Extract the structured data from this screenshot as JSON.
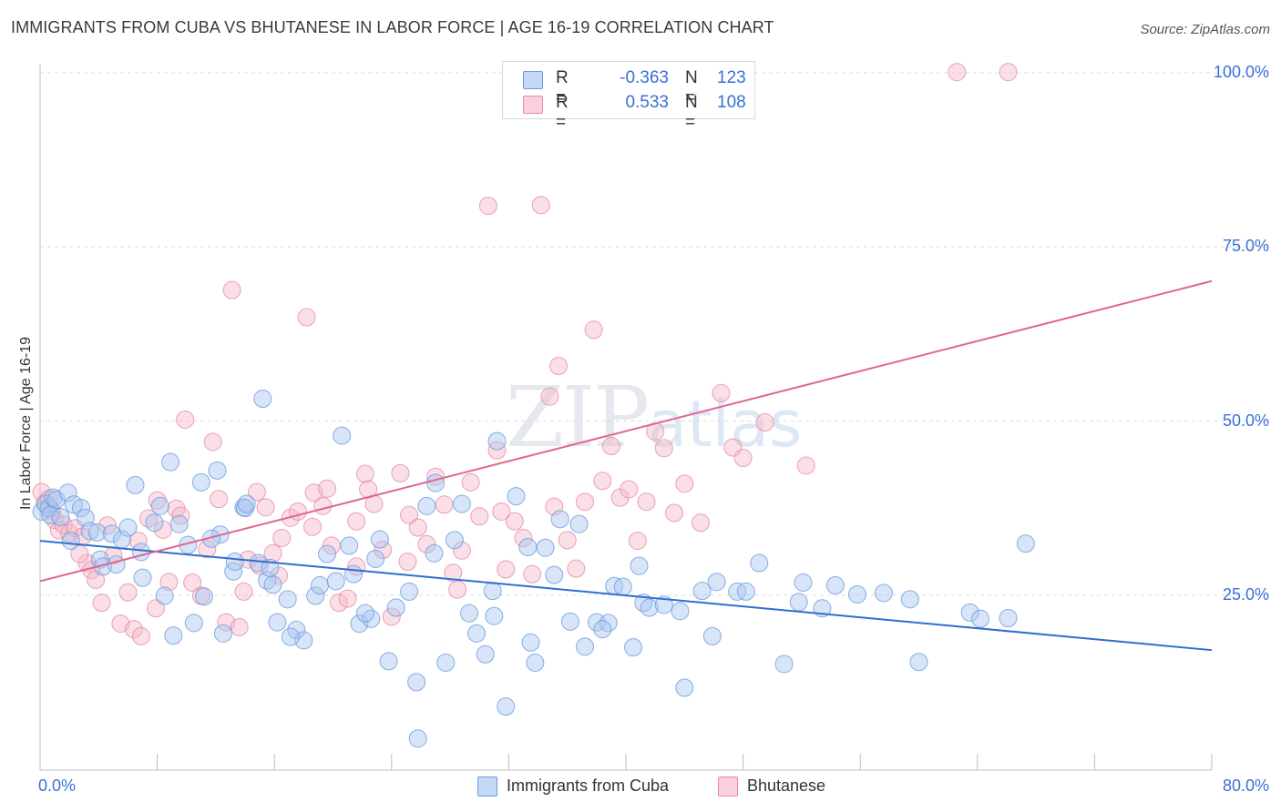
{
  "header": {
    "title": "IMMIGRANTS FROM CUBA VS BHUTANESE IN LABOR FORCE | AGE 16-19 CORRELATION CHART",
    "source": "Source: ZipAtlas.com"
  },
  "watermark": {
    "zip": "ZIP",
    "atlas": "atlas"
  },
  "legend_top": {
    "rows": [
      {
        "r_label": "R =",
        "r_value": "-0.363",
        "n_label": "N =",
        "n_value": "123"
      },
      {
        "r_label": "R =",
        "r_value": "0.533",
        "n_label": "N =",
        "n_value": "108"
      }
    ]
  },
  "legend_bottom": {
    "items": [
      {
        "label": "Immigrants from Cuba"
      },
      {
        "label": "Bhutanese"
      }
    ]
  },
  "colors": {
    "blue_fill": "#a8c6f0",
    "blue_stroke": "#6a9be0",
    "blue_line": "#2f6fd0",
    "pink_fill": "#f5b8c8",
    "pink_stroke": "#e98aa5",
    "pink_line": "#e06690",
    "grid": "#dcdcdc",
    "tick_text": "#3a6fd8"
  },
  "chart_data": {
    "type": "scatter",
    "title": "IMMIGRANTS FROM CUBA VS BHUTANESE IN LABOR FORCE | AGE 16-19 CORRELATION CHART",
    "xlabel": "",
    "ylabel": "In Labor Force | Age 16-19",
    "xlim": [
      0,
      80
    ],
    "ylim": [
      0,
      102
    ],
    "x_tick_labels": [
      {
        "value": 0,
        "label": "0.0%"
      },
      {
        "value": 80,
        "label": "80.0%"
      }
    ],
    "y_tick_labels": [
      {
        "value": 25,
        "label": "25.0%"
      },
      {
        "value": 50,
        "label": "50.0%"
      },
      {
        "value": 75,
        "label": "75.0%"
      },
      {
        "value": 100,
        "label": "100.0%"
      }
    ],
    "grid": true,
    "legend_position": "top-center",
    "series": [
      {
        "name": "Immigrants from Cuba",
        "color": "#a8c6f0",
        "trend": {
          "x": [
            0,
            80
          ],
          "y": [
            32.8,
            17.1
          ]
        },
        "points": [
          [
            0.1,
            37.0
          ],
          [
            0.4,
            38.1
          ],
          [
            0.6,
            37.5
          ],
          [
            0.7,
            36.5
          ],
          [
            0.9,
            39.0
          ],
          [
            1.1,
            38.7
          ],
          [
            1.4,
            36.2
          ],
          [
            1.9,
            39.7
          ],
          [
            2.3,
            38.0
          ],
          [
            2.8,
            37.5
          ],
          [
            3.1,
            36.1
          ],
          [
            3.4,
            34.2
          ],
          [
            3.9,
            34.0
          ],
          [
            4.1,
            30.1
          ],
          [
            4.3,
            29.1
          ],
          [
            4.9,
            33.8
          ],
          [
            5.2,
            29.4
          ],
          [
            5.6,
            33.0
          ],
          [
            6.0,
            34.7
          ],
          [
            6.5,
            40.8
          ],
          [
            7.0,
            27.5
          ],
          [
            7.8,
            35.4
          ],
          [
            8.2,
            37.8
          ],
          [
            8.5,
            24.9
          ],
          [
            8.9,
            44.1
          ],
          [
            9.5,
            35.2
          ],
          [
            10.1,
            32.2
          ],
          [
            10.5,
            21.0
          ],
          [
            11.0,
            41.2
          ],
          [
            12.1,
            42.9
          ],
          [
            12.3,
            33.7
          ],
          [
            12.5,
            19.5
          ],
          [
            13.2,
            28.4
          ],
          [
            13.9,
            37.6
          ],
          [
            14.0,
            37.5
          ],
          [
            14.9,
            29.6
          ],
          [
            15.2,
            53.2
          ],
          [
            15.5,
            27.1
          ],
          [
            15.9,
            26.5
          ],
          [
            16.2,
            21.1
          ],
          [
            16.9,
            24.4
          ],
          [
            17.5,
            20.0
          ],
          [
            18.0,
            18.5
          ],
          [
            18.8,
            24.9
          ],
          [
            19.6,
            30.9
          ],
          [
            20.6,
            47.9
          ],
          [
            21.4,
            28.0
          ],
          [
            21.8,
            20.9
          ],
          [
            22.6,
            21.6
          ],
          [
            23.2,
            33.0
          ],
          [
            23.8,
            15.5
          ],
          [
            24.3,
            23.2
          ],
          [
            25.2,
            25.5
          ],
          [
            25.8,
            4.4
          ],
          [
            26.4,
            37.8
          ],
          [
            27.0,
            41.1
          ],
          [
            27.7,
            15.3
          ],
          [
            28.3,
            32.9
          ],
          [
            28.8,
            38.1
          ],
          [
            29.8,
            19.5
          ],
          [
            30.4,
            16.5
          ],
          [
            31.0,
            22.0
          ],
          [
            31.2,
            47.1
          ],
          [
            31.8,
            9.0
          ],
          [
            32.5,
            39.2
          ],
          [
            33.5,
            18.2
          ],
          [
            33.8,
            15.3
          ],
          [
            34.5,
            31.8
          ],
          [
            35.5,
            35.9
          ],
          [
            36.2,
            21.2
          ],
          [
            36.8,
            35.2
          ],
          [
            37.2,
            17.6
          ],
          [
            38.0,
            21.1
          ],
          [
            38.8,
            21.0
          ],
          [
            39.2,
            26.3
          ],
          [
            39.8,
            26.2
          ],
          [
            40.5,
            17.5
          ],
          [
            41.2,
            23.9
          ],
          [
            41.6,
            23.2
          ],
          [
            42.6,
            23.6
          ],
          [
            44.0,
            11.7
          ],
          [
            45.2,
            25.6
          ],
          [
            46.2,
            26.9
          ],
          [
            47.6,
            25.5
          ],
          [
            48.2,
            25.5
          ],
          [
            49.1,
            29.6
          ],
          [
            50.8,
            15.1
          ],
          [
            52.1,
            26.8
          ],
          [
            53.4,
            23.1
          ],
          [
            55.8,
            25.1
          ],
          [
            57.6,
            25.3
          ],
          [
            60.0,
            15.4
          ],
          [
            63.5,
            22.5
          ],
          [
            64.2,
            21.6
          ],
          [
            67.3,
            32.4
          ],
          [
            22.2,
            22.4
          ],
          [
            11.2,
            24.8
          ],
          [
            14.1,
            38.1
          ],
          [
            19.1,
            26.4
          ],
          [
            2.1,
            32.8
          ],
          [
            6.9,
            31.2
          ],
          [
            9.1,
            19.2
          ],
          [
            13.3,
            29.8
          ],
          [
            17.1,
            19.0
          ],
          [
            20.2,
            27.0
          ],
          [
            22.9,
            30.2
          ],
          [
            25.7,
            12.5
          ],
          [
            29.3,
            22.4
          ],
          [
            33.3,
            31.9
          ],
          [
            38.4,
            20.1
          ],
          [
            40.9,
            29.2
          ],
          [
            43.7,
            22.7
          ],
          [
            45.9,
            19.1
          ],
          [
            51.8,
            24.0
          ],
          [
            54.3,
            26.4
          ],
          [
            59.4,
            24.4
          ],
          [
            66.1,
            21.7
          ],
          [
            11.7,
            33.1
          ],
          [
            15.7,
            28.9
          ],
          [
            21.1,
            32.1
          ],
          [
            26.9,
            31.0
          ],
          [
            30.9,
            25.6
          ],
          [
            35.1,
            27.9
          ]
        ]
      },
      {
        "name": "Bhutanese",
        "color": "#f5b8c8",
        "trend": {
          "x": [
            0,
            80
          ],
          "y": [
            27.0,
            70.1
          ]
        },
        "points": [
          [
            0.1,
            39.8
          ],
          [
            0.3,
            38.2
          ],
          [
            0.6,
            38.8
          ],
          [
            0.8,
            37.1
          ],
          [
            1.0,
            35.8
          ],
          [
            1.3,
            34.3
          ],
          [
            1.6,
            35.1
          ],
          [
            2.0,
            33.9
          ],
          [
            2.4,
            34.6
          ],
          [
            2.9,
            33.4
          ],
          [
            3.2,
            29.6
          ],
          [
            3.5,
            28.6
          ],
          [
            3.8,
            27.2
          ],
          [
            4.2,
            23.9
          ],
          [
            4.6,
            35.0
          ],
          [
            5.0,
            30.7
          ],
          [
            5.5,
            20.9
          ],
          [
            6.0,
            25.4
          ],
          [
            6.4,
            20.1
          ],
          [
            6.9,
            19.1
          ],
          [
            7.4,
            36.0
          ],
          [
            7.9,
            23.1
          ],
          [
            8.4,
            34.4
          ],
          [
            8.8,
            26.9
          ],
          [
            9.3,
            37.4
          ],
          [
            9.9,
            50.2
          ],
          [
            10.4,
            26.8
          ],
          [
            11.0,
            24.9
          ],
          [
            11.8,
            47.0
          ],
          [
            12.2,
            38.8
          ],
          [
            12.7,
            21.1
          ],
          [
            13.1,
            68.8
          ],
          [
            13.6,
            20.4
          ],
          [
            14.2,
            30.1
          ],
          [
            14.8,
            39.8
          ],
          [
            15.4,
            37.6
          ],
          [
            15.9,
            31.0
          ],
          [
            16.5,
            33.2
          ],
          [
            17.1,
            36.1
          ],
          [
            17.6,
            37.0
          ],
          [
            18.2,
            64.9
          ],
          [
            18.7,
            39.7
          ],
          [
            19.3,
            37.8
          ],
          [
            19.9,
            32.1
          ],
          [
            20.4,
            23.9
          ],
          [
            21.0,
            24.5
          ],
          [
            21.6,
            35.6
          ],
          [
            22.2,
            42.4
          ],
          [
            22.8,
            38.1
          ],
          [
            23.4,
            31.5
          ],
          [
            24.0,
            21.9
          ],
          [
            24.6,
            42.5
          ],
          [
            25.2,
            36.5
          ],
          [
            25.8,
            34.7
          ],
          [
            26.4,
            32.3
          ],
          [
            27.0,
            42.0
          ],
          [
            27.6,
            38.0
          ],
          [
            28.2,
            28.2
          ],
          [
            28.8,
            31.4
          ],
          [
            29.4,
            41.2
          ],
          [
            30.0,
            36.3
          ],
          [
            30.6,
            80.9
          ],
          [
            31.2,
            45.8
          ],
          [
            31.8,
            28.7
          ],
          [
            32.4,
            35.6
          ],
          [
            33.0,
            33.2
          ],
          [
            33.6,
            28.0
          ],
          [
            34.2,
            81.0
          ],
          [
            34.8,
            53.5
          ],
          [
            35.4,
            57.9
          ],
          [
            36.0,
            32.9
          ],
          [
            36.6,
            28.8
          ],
          [
            37.2,
            38.4
          ],
          [
            37.8,
            63.1
          ],
          [
            38.4,
            41.4
          ],
          [
            39.0,
            46.4
          ],
          [
            39.6,
            39.0
          ],
          [
            40.2,
            40.2
          ],
          [
            40.8,
            32.8
          ],
          [
            41.4,
            38.4
          ],
          [
            42.0,
            48.5
          ],
          [
            42.6,
            46.1
          ],
          [
            43.3,
            36.8
          ],
          [
            44.0,
            41.0
          ],
          [
            45.1,
            35.4
          ],
          [
            46.5,
            54.0
          ],
          [
            47.3,
            46.2
          ],
          [
            48.0,
            44.7
          ],
          [
            49.5,
            49.8
          ],
          [
            52.3,
            43.6
          ],
          [
            62.6,
            100.1
          ],
          [
            66.1,
            100.1
          ],
          [
            2.7,
            30.9
          ],
          [
            6.7,
            32.8
          ],
          [
            9.6,
            36.4
          ],
          [
            13.9,
            25.5
          ],
          [
            16.3,
            27.8
          ],
          [
            19.6,
            40.3
          ],
          [
            22.4,
            40.2
          ],
          [
            25.1,
            29.8
          ],
          [
            28.5,
            25.8
          ],
          [
            31.5,
            37.0
          ],
          [
            35.1,
            37.7
          ],
          [
            8.0,
            38.6
          ],
          [
            11.4,
            31.6
          ],
          [
            15.0,
            29.2
          ],
          [
            18.6,
            34.8
          ],
          [
            21.6,
            29.1
          ]
        ]
      }
    ]
  }
}
